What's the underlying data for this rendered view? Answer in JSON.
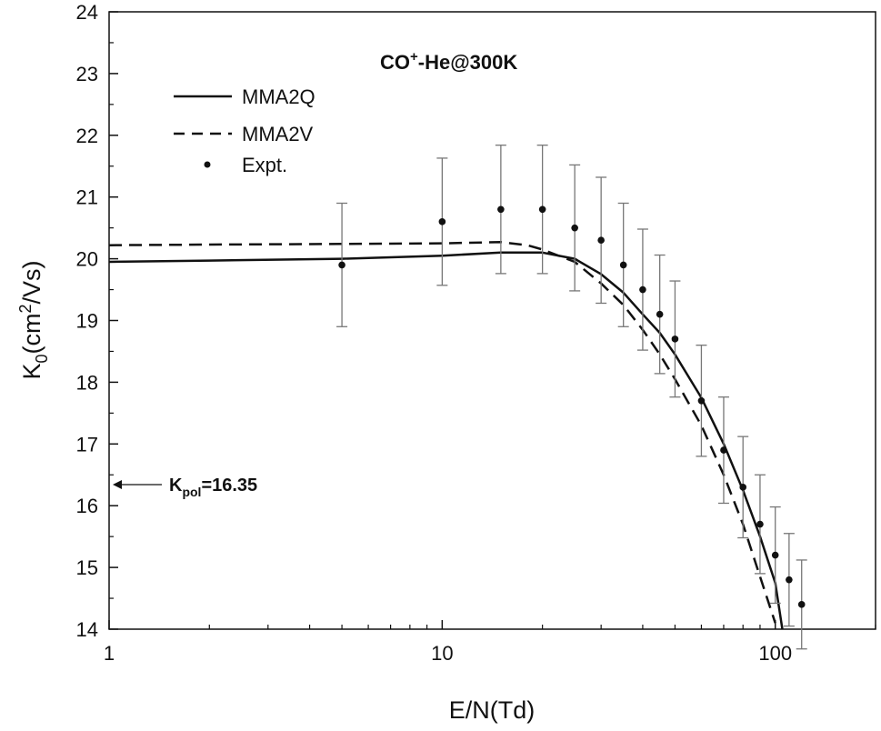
{
  "chart_data": {
    "type": "line",
    "title": {
      "main": "CO",
      "sup": "+",
      "rest": "-He@300K"
    },
    "xlabel": "E/N(Td)",
    "ylabel": {
      "main": "K",
      "sub": "0",
      "mid": "(cm",
      "sup": "2",
      "end": "/Vs)"
    },
    "xscale": "log",
    "xlim": [
      1,
      200
    ],
    "ylim": [
      14,
      24
    ],
    "x_ticks": [
      1,
      10,
      100
    ],
    "x_tick_labels": [
      "1",
      "10",
      "100"
    ],
    "y_ticks": [
      14,
      15,
      16,
      17,
      18,
      19,
      20,
      21,
      22,
      23,
      24
    ],
    "y_tick_labels": [
      "14",
      "15",
      "16",
      "17",
      "18",
      "19",
      "20",
      "21",
      "22",
      "23",
      "24"
    ],
    "legend_position": "top-left",
    "series": [
      {
        "name": "MMA2Q",
        "style": "solid",
        "x": [
          1,
          2,
          5,
          10,
          15,
          20,
          25,
          30,
          35,
          40,
          45,
          50,
          60,
          70,
          80,
          90,
          100,
          105
        ],
        "y": [
          19.95,
          19.97,
          20.0,
          20.05,
          20.1,
          20.1,
          20.0,
          19.75,
          19.45,
          19.1,
          18.8,
          18.45,
          17.75,
          17.0,
          16.25,
          15.5,
          14.75,
          14.0
        ]
      },
      {
        "name": "MMA2V",
        "style": "dashed",
        "x": [
          1,
          2,
          5,
          10,
          15,
          18,
          20,
          25,
          30,
          35,
          40,
          45,
          50,
          60,
          70,
          80,
          90,
          100
        ],
        "y": [
          20.22,
          20.23,
          20.24,
          20.25,
          20.27,
          20.22,
          20.15,
          19.95,
          19.6,
          19.25,
          18.85,
          18.45,
          18.05,
          17.3,
          16.5,
          15.7,
          14.85,
          14.1
        ]
      },
      {
        "name": "Expt.",
        "style": "markers",
        "x": [
          5,
          10,
          15,
          20,
          25,
          30,
          35,
          40,
          45,
          50,
          60,
          70,
          80,
          90,
          100,
          110,
          120
        ],
        "y": [
          19.9,
          20.6,
          20.8,
          20.8,
          20.5,
          20.3,
          19.9,
          19.5,
          19.1,
          18.7,
          17.7,
          16.9,
          16.3,
          15.7,
          15.2,
          14.8,
          14.4
        ],
        "yerr": [
          1.0,
          1.03,
          1.04,
          1.04,
          1.02,
          1.02,
          1.0,
          0.98,
          0.96,
          0.94,
          0.9,
          0.86,
          0.82,
          0.8,
          0.78,
          0.75,
          0.72
        ]
      }
    ],
    "annotation": {
      "main": "K",
      "sub": "pol",
      "rest": "=16.35",
      "y": 16.35,
      "arrow": "points-left-to-y-axis"
    }
  }
}
